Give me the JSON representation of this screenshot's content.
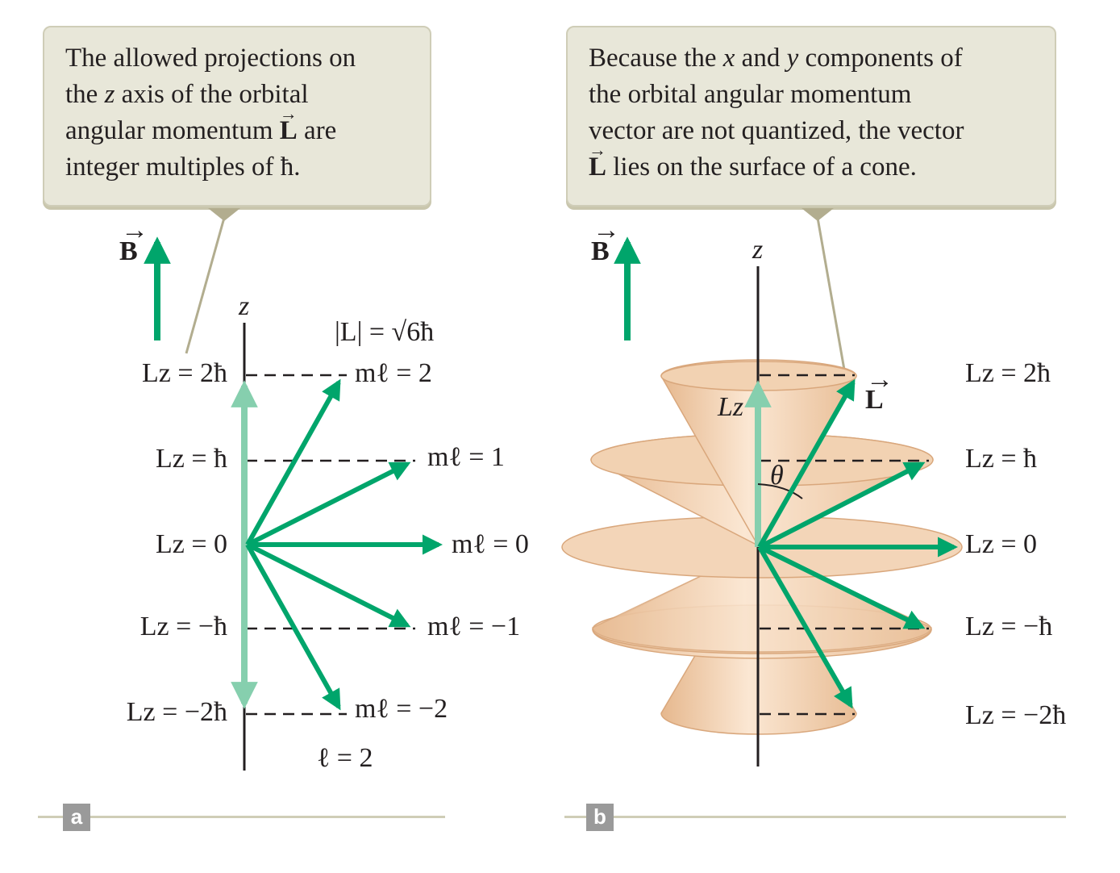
{
  "panel_a": {
    "callout_line1": "The allowed projections on",
    "callout_line2a": "the ",
    "callout_line2_z": "z",
    "callout_line2b": " axis of the orbital",
    "callout_line3a": "angular momentum ",
    "callout_line3_L": "L",
    "callout_line3b": " are",
    "callout_line4": "integer multiples of ħ.",
    "field_label": "B",
    "axis_label": "z",
    "magnitude_label": "|L| = √6ħ",
    "lz_labels": [
      "Lz = 2ħ",
      "Lz = ħ",
      "Lz = 0",
      "Lz = −ħ",
      "Lz = −2ħ"
    ],
    "ml_labels": [
      "mℓ = 2",
      "mℓ = 1",
      "mℓ = 0",
      "mℓ = −1",
      "mℓ = −2"
    ],
    "ell_label": "ℓ = 2",
    "tag": "a"
  },
  "panel_b": {
    "callout_line1a": "Because the ",
    "callout_line1_x": "x",
    "callout_line1b": " and ",
    "callout_line1_y": "y",
    "callout_line1c": " components of",
    "callout_line2": "the orbital angular momentum",
    "callout_line3": "vector are not quantized, the vector",
    "callout_line4_L": "L",
    "callout_line4b": " lies on the surface of a cone.",
    "field_label": "B",
    "axis_label": "z",
    "lz_inner_label": "Lz",
    "theta_label": "θ",
    "vector_label": "L",
    "lz_labels": [
      "Lz = 2ħ",
      "Lz = ħ",
      "Lz = 0",
      "Lz = −ħ",
      "Lz = −2ħ"
    ],
    "tag": "b"
  },
  "colors": {
    "arrow_green": "#00a56b",
    "lz_light_green": "#86cfae",
    "cone_fill": "#efcba8",
    "callout_bg": "#e8e7d9",
    "pointer_line": "#b2ad8f"
  }
}
